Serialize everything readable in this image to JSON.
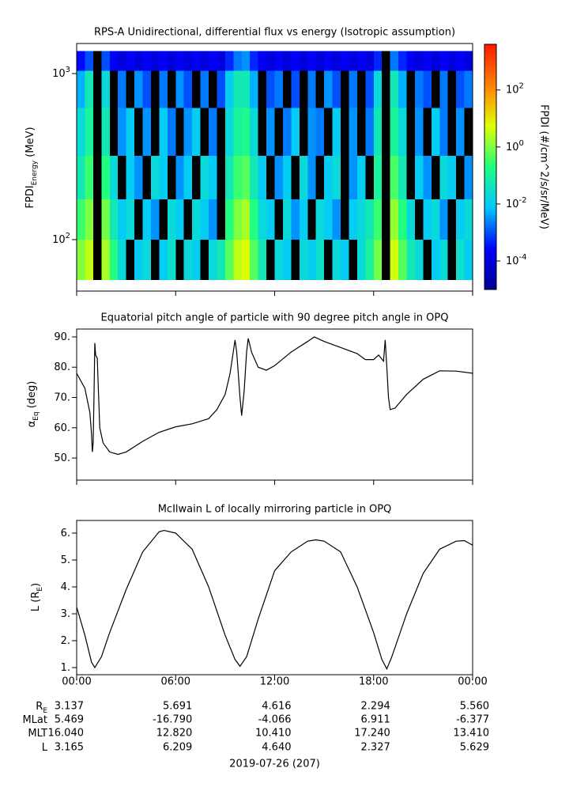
{
  "chart_data": [
    {
      "type": "heatmap",
      "title": "RPS-A Unidirectional, differential flux vs energy (Isotropic assumption)",
      "ylabel": {
        "text": "FPDI",
        "sub": "Energy",
        "after": " (MeV)"
      },
      "ylog": true,
      "ylim": [
        49,
        1517
      ],
      "yticks": [
        {
          "value": 100,
          "label": "10",
          "sup": "2"
        },
        {
          "value": 1000,
          "label": "10",
          "sup": "3"
        }
      ],
      "xlim": [
        0,
        24
      ],
      "xticks": [
        0,
        6,
        12,
        18,
        24
      ],
      "bins": [
        57,
        100,
        175,
        320,
        620,
        1040,
        1370
      ],
      "x": [
        0,
        0.5,
        1,
        1.5,
        2,
        2.5,
        3,
        3.5,
        4,
        4.5,
        5,
        5.5,
        6,
        6.5,
        7,
        7.5,
        8,
        8.5,
        9,
        9.5,
        10,
        10.5,
        11,
        11.5,
        12,
        12.5,
        13,
        13.5,
        14,
        14.5,
        15,
        15.5,
        16,
        16.5,
        17,
        17.5,
        18,
        18.5,
        19,
        19.5,
        20,
        20.5,
        21,
        21.5,
        22,
        22.5,
        23,
        23.5
      ],
      "z": [
        [
          1,
          3,
          null,
          2,
          0.2,
          0.02,
          null,
          0.01,
          0.02,
          null,
          0.01,
          0.03,
          null,
          0.02,
          0.01,
          null,
          0.02,
          0.05,
          0.5,
          3,
          5,
          0.5,
          0.05,
          null,
          0.02,
          0.01,
          null,
          0.02,
          0.01,
          0.03,
          null,
          0.02,
          0.01,
          null,
          0.02,
          0.1,
          0.8,
          null,
          4,
          0.5,
          0.05,
          0.02,
          null,
          0.01,
          0.02,
          null,
          0.03,
          0.01
        ],
        [
          0.3,
          1,
          null,
          0.8,
          0.05,
          0.01,
          0.02,
          null,
          0.01,
          0.003,
          null,
          0.02,
          0.01,
          null,
          0.02,
          0.01,
          0.003,
          null,
          0.2,
          1,
          2,
          0.2,
          0.02,
          0.01,
          null,
          0.02,
          0.003,
          0.01,
          null,
          0.02,
          0.01,
          0.003,
          null,
          0.01,
          0.02,
          0.05,
          0.3,
          null,
          1.5,
          0.2,
          0.02,
          null,
          0.01,
          0.02,
          0.003,
          null,
          0.01,
          0.02
        ],
        [
          0.05,
          0.3,
          null,
          0.2,
          0.02,
          null,
          0.01,
          0.003,
          null,
          0.02,
          0.01,
          null,
          0.003,
          0.01,
          null,
          0.02,
          0.01,
          null,
          0.05,
          0.3,
          0.5,
          0.05,
          0.01,
          null,
          0.003,
          0.01,
          null,
          0.02,
          0.003,
          null,
          0.01,
          0.02,
          null,
          0.003,
          0.01,
          null,
          0.1,
          null,
          0.4,
          0.05,
          null,
          0.01,
          0.003,
          null,
          0.02,
          0.01,
          null,
          0.003
        ],
        [
          0.02,
          0.1,
          null,
          0.05,
          null,
          0.003,
          0.01,
          null,
          0.003,
          null,
          0.01,
          0.002,
          null,
          0.003,
          0.01,
          null,
          0.002,
          null,
          0.02,
          0.1,
          0.15,
          0.02,
          null,
          0.003,
          null,
          0.002,
          0.01,
          null,
          0.003,
          0.002,
          null,
          0.01,
          null,
          0.003,
          null,
          0.002,
          0.05,
          null,
          0.1,
          0.02,
          null,
          0.003,
          null,
          0.01,
          0.002,
          null,
          0.003,
          null
        ],
        [
          0.005,
          0.05,
          null,
          0.02,
          null,
          0.002,
          null,
          0.003,
          0.001,
          null,
          0.002,
          null,
          0.003,
          0.001,
          null,
          0.002,
          null,
          0.001,
          0.01,
          0.05,
          0.05,
          0.005,
          null,
          0.001,
          0.002,
          null,
          0.001,
          null,
          0.002,
          null,
          0.003,
          0.001,
          null,
          0.002,
          null,
          0.001,
          0.02,
          null,
          0.05,
          0.005,
          null,
          0.002,
          0.001,
          null,
          0.002,
          null,
          0.001,
          0.002
        ],
        [
          0.0003,
          0.001,
          null,
          0.001,
          0.0002,
          0.0001,
          0.0002,
          0.0001,
          0.0002,
          0.0001,
          0.0002,
          0.0001,
          0.0002,
          0.0001,
          0.0002,
          0.0001,
          0.0002,
          0.0001,
          0.0005,
          0.002,
          0.003,
          0.0005,
          0.0002,
          0.0001,
          0.0002,
          0.0001,
          0.0002,
          0.0001,
          0.0002,
          0.0001,
          0.0002,
          0.0001,
          0.0002,
          0.0001,
          0.0002,
          0.0001,
          0.0005,
          null,
          0.002,
          0.0005,
          0.0002,
          0.0001,
          0.0002,
          0.0001,
          0.0002,
          0.0001,
          0.0002,
          0.0001
        ]
      ],
      "no_data_color": "#000000",
      "colorbar": {
        "label": "FPDI (#/cm^2/s/sr/MeV)",
        "log": true,
        "zlim": [
          1e-05,
          4000
        ],
        "ticks": [
          {
            "value": 0.0001,
            "label": "10",
            "sup": "-4"
          },
          {
            "value": 0.01,
            "label": "10",
            "sup": "-2"
          },
          {
            "value": 1,
            "label": "10",
            "sup": "0"
          },
          {
            "value": 100,
            "label": "10",
            "sup": "2"
          }
        ],
        "colormap": [
          "#000090",
          "#0000ff",
          "#00c8ff",
          "#20ff80",
          "#e0ff00",
          "#ff8000",
          "#ff1a00"
        ]
      }
    },
    {
      "type": "line",
      "title": "Equatorial pitch angle of particle with 90 degree pitch angle in OPQ",
      "ylabel": {
        "text": "α",
        "sub": "Eq",
        "after": " (deg)"
      },
      "ylim": [
        42.7,
        92.6
      ],
      "yticks": [
        {
          "value": 50,
          "label": "50."
        },
        {
          "value": 60,
          "label": "60."
        },
        {
          "value": 70,
          "label": "70."
        },
        {
          "value": 80,
          "label": "80."
        },
        {
          "value": 90,
          "label": "90."
        }
      ],
      "xlim": [
        0,
        24
      ],
      "xticks": [
        0,
        6,
        12,
        18,
        24
      ],
      "color": "#000000",
      "x": [
        0,
        0.5,
        0.8,
        0.9,
        0.95,
        1.0,
        1.05,
        1.1,
        1.15,
        1.25,
        1.3,
        1.4,
        1.6,
        2,
        2.5,
        3,
        4,
        5,
        6,
        7,
        8,
        8.5,
        9,
        9.3,
        9.6,
        9.7,
        9.9,
        10.0,
        10.15,
        10.3,
        10.4,
        10.6,
        11,
        11.5,
        12,
        13,
        14,
        14.4,
        15,
        16,
        17,
        17.5,
        18,
        18.3,
        18.45,
        18.6,
        18.7,
        18.8,
        18.9,
        19.0,
        19.3,
        20,
        21,
        22,
        23,
        24
      ],
      "values": [
        78,
        73,
        65,
        58,
        52,
        55,
        70,
        88,
        84,
        83,
        75,
        60,
        55,
        52,
        51.2,
        52,
        55.5,
        58.5,
        60.3,
        61.3,
        63,
        66,
        71,
        78,
        89,
        85,
        70,
        64,
        72,
        85,
        89.5,
        85,
        80,
        79,
        80.5,
        85,
        88.5,
        90,
        88.5,
        86.5,
        84.5,
        82.5,
        82.5,
        84,
        83,
        82,
        89,
        80,
        70,
        66,
        66.5,
        71,
        76,
        78.8,
        78.7,
        78
      ]
    },
    {
      "type": "line",
      "title": "McIlwain L of locally mirroring particle in OPQ",
      "ylabel": {
        "text": "L (R",
        "sub": "E",
        "after": ")"
      },
      "ylim": [
        0.735,
        6.47
      ],
      "yticks": [
        {
          "value": 1,
          "label": "1."
        },
        {
          "value": 2,
          "label": "2."
        },
        {
          "value": 3,
          "label": "3."
        },
        {
          "value": 4,
          "label": "4."
        },
        {
          "value": 5,
          "label": "5."
        },
        {
          "value": 6,
          "label": "6."
        }
      ],
      "xlim": [
        0,
        24
      ],
      "xticks": [
        {
          "value": 0,
          "label": "00:00"
        },
        {
          "value": 6,
          "label": "06:00"
        },
        {
          "value": 12,
          "label": "12:00"
        },
        {
          "value": 18,
          "label": "18:00"
        },
        {
          "value": 24,
          "label": "00:00"
        }
      ],
      "color": "#000000",
      "x": [
        0,
        0.5,
        0.9,
        1.1,
        1.5,
        2,
        3,
        4,
        5,
        5.3,
        6,
        7,
        8,
        9,
        9.6,
        9.9,
        10.3,
        11,
        12,
        13,
        14,
        14.5,
        15,
        16,
        17,
        18,
        18.5,
        18.8,
        19.1,
        20,
        21,
        22,
        23,
        23.5,
        24
      ],
      "values": [
        3.25,
        2.2,
        1.2,
        1.0,
        1.4,
        2.3,
        3.9,
        5.3,
        6.05,
        6.1,
        6.0,
        5.4,
        4.0,
        2.2,
        1.3,
        1.05,
        1.4,
        2.8,
        4.6,
        5.3,
        5.7,
        5.75,
        5.7,
        5.3,
        4.0,
        2.3,
        1.3,
        0.95,
        1.4,
        3.0,
        4.5,
        5.4,
        5.7,
        5.72,
        5.55
      ]
    }
  ],
  "ephemeris": {
    "rows": [
      {
        "label": "R",
        "sub": "E",
        "values": [
          "3.137",
          "5.691",
          "4.616",
          "2.294",
          "5.560"
        ]
      },
      {
        "label": "MLat",
        "values": [
          "5.469",
          "-16.790",
          "-4.066",
          "6.911",
          "-6.377"
        ]
      },
      {
        "label": "MLT",
        "values": [
          "16.040",
          "12.820",
          "10.410",
          "17.240",
          "13.410"
        ]
      },
      {
        "label": "L",
        "values": [
          "3.165",
          "6.209",
          "4.640",
          "2.327",
          "5.629"
        ]
      }
    ],
    "date": "2019-07-26 (207)"
  }
}
